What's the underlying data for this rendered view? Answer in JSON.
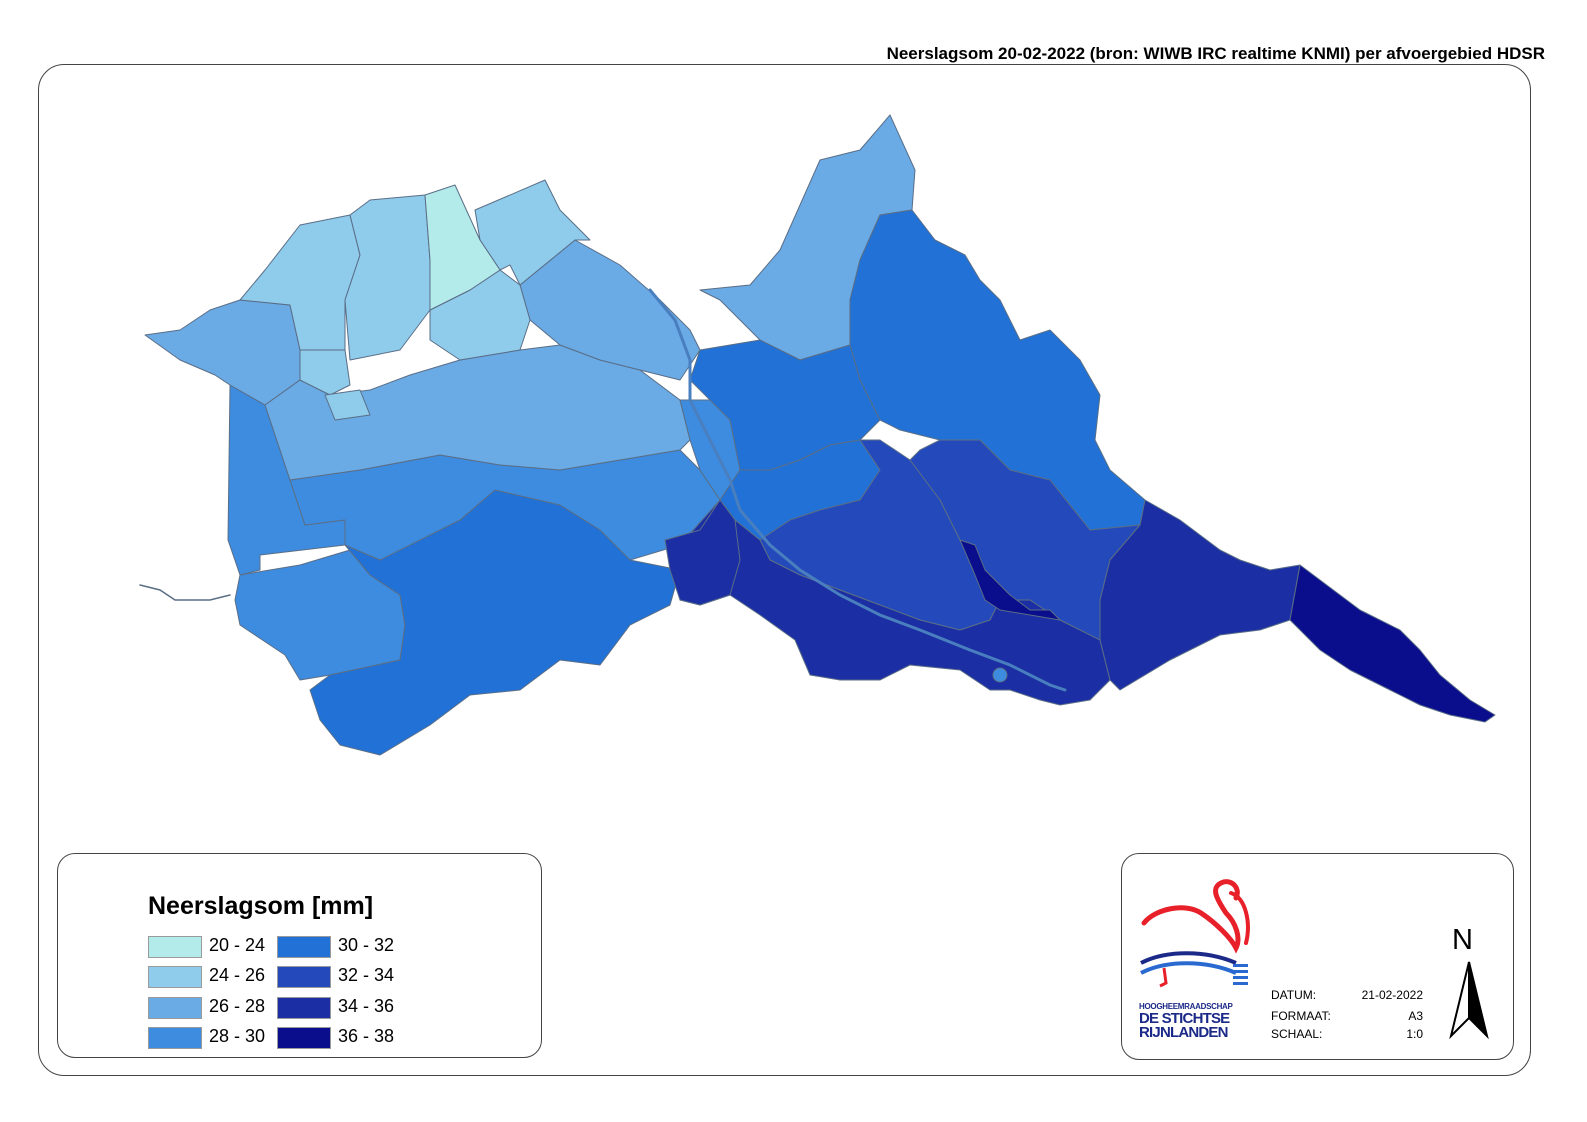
{
  "title": "Neerslagsom 20-02-2022 (bron: WIWB IRC realtime KNMI) per afvoergebied HDSR",
  "legend": {
    "title": "Neerslagsom [mm]",
    "classes": [
      {
        "label": "20 - 24",
        "color": "#b3ebeb"
      },
      {
        "label": "24 - 26",
        "color": "#8fcbeb"
      },
      {
        "label": "26 - 28",
        "color": "#6aaae5"
      },
      {
        "label": "28 - 30",
        "color": "#3d8ce0"
      },
      {
        "label": "30 - 32",
        "color": "#2171d6"
      },
      {
        "label": "32 - 34",
        "color": "#2449bb"
      },
      {
        "label": "34 - 36",
        "color": "#1b2ea3"
      },
      {
        "label": "36 - 38",
        "color": "#0a0d8c"
      }
    ]
  },
  "info": {
    "logo_text": [
      "HOOGHEEMRAADSCHAP",
      "DE STICHTSE",
      "RIJNLANDEN"
    ],
    "datum_label": "DATUM:",
    "datum_value": "21-02-2022",
    "formaat_label": "FORMAAT:",
    "formaat_value": "A3",
    "schaal_label": "SCHAAL:",
    "schaal_value": "1:0",
    "north_label": "N"
  },
  "map_regions": [
    {
      "name": "20-24",
      "class": 0
    },
    {
      "name": "24-26",
      "class": 1
    },
    {
      "name": "26-28",
      "class": 2
    },
    {
      "name": "28-30",
      "class": 3
    },
    {
      "name": "30-32",
      "class": 4
    },
    {
      "name": "32-34",
      "class": 5
    },
    {
      "name": "34-36",
      "class": 6
    },
    {
      "name": "36-38",
      "class": 7
    }
  ]
}
